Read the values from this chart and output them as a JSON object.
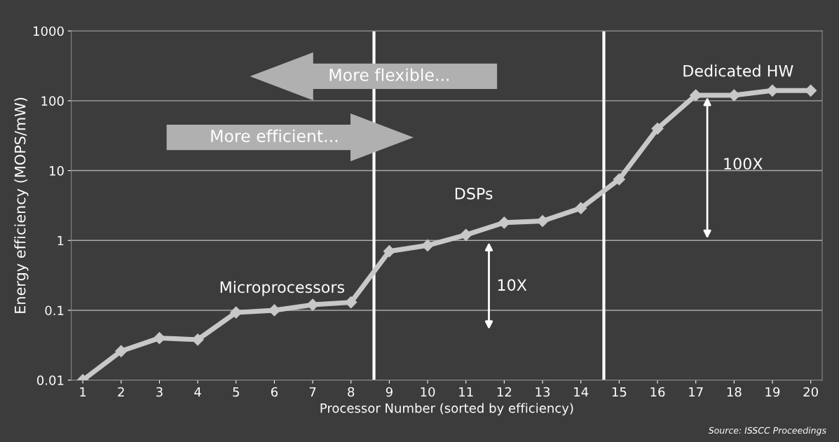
{
  "chart_data": {
    "type": "line",
    "xlabel": "Processor Number (sorted by efficiency)",
    "ylabel": "Energy efficiency (MOPS/mW)",
    "x": [
      1,
      2,
      3,
      4,
      5,
      6,
      7,
      8,
      9,
      10,
      11,
      12,
      13,
      14,
      15,
      16,
      17,
      18,
      19,
      20
    ],
    "series": [
      {
        "color": "#c8c8c8",
        "values": [
          0.01,
          0.026,
          0.04,
          0.038,
          0.093,
          0.1,
          0.12,
          0.13,
          0.7,
          0.85,
          1.2,
          1.8,
          1.9,
          2.9,
          7.5,
          40,
          120,
          120,
          140,
          140
        ]
      }
    ],
    "log": "y",
    "marker": "diamond",
    "line_style": "solid",
    "grid": "y",
    "legend": false,
    "xlim": [
      0.7,
      20.3
    ],
    "xticks": [
      1,
      2,
      3,
      4,
      5,
      6,
      7,
      8,
      9,
      10,
      11,
      12,
      13,
      14,
      15,
      16,
      17,
      18,
      19,
      20
    ],
    "ylim": [
      0.01,
      1000
    ],
    "yticks": [
      {
        "value": 0.01,
        "label": "0.01"
      },
      {
        "value": 0.1,
        "label": "0.1"
      },
      1,
      10,
      100,
      1000
    ],
    "ref_lines": [
      {
        "axis": "x",
        "value": 8.6,
        "label": null,
        "color": "#ffffff"
      },
      {
        "axis": "x",
        "value": 14.6,
        "label": null,
        "color": "#ffffff"
      }
    ],
    "annotations": [
      "More flexible...",
      "More efficient...",
      "Microprocessors",
      "DSPs",
      "Dedicated HW",
      "10X",
      "100X",
      "Source: ISSCC Proceedings"
    ]
  }
}
